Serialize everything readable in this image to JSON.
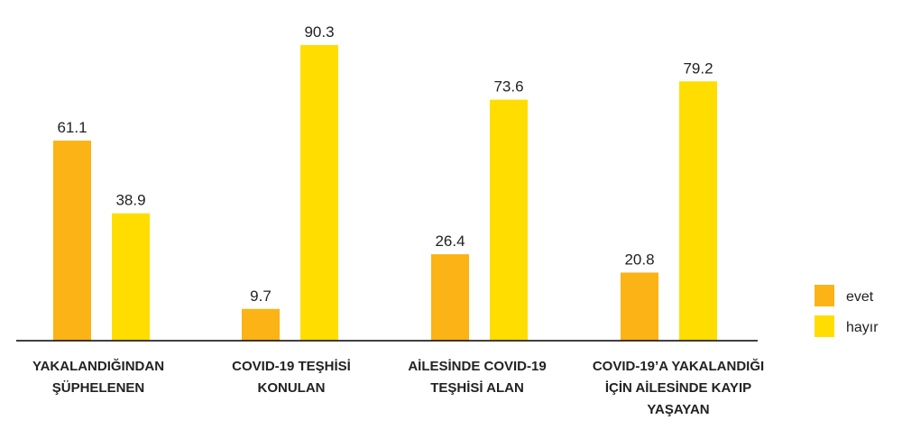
{
  "chart_data": {
    "type": "bar",
    "categories": [
      [
        "YAKALANDIĞINDAN",
        "ŞÜPHELENEN"
      ],
      [
        "COVID-19 TEŞHİSİ",
        "KONULAN"
      ],
      [
        "AİLESİNDE COVID-19",
        "TEŞHİSİ ALAN"
      ],
      [
        "COVID-19’A YAKALANDIĞI",
        "İÇİN AİLESİNDE KAYIP",
        "YAŞAYAN"
      ]
    ],
    "series": [
      {
        "name": "evet",
        "values": [
          61.1,
          9.7,
          26.4,
          20.8
        ],
        "color": "#FBB315"
      },
      {
        "name": "hayır",
        "values": [
          38.9,
          90.3,
          73.6,
          79.2
        ],
        "color": "#FFDD00"
      }
    ],
    "ylim": [
      0,
      100
    ],
    "grid": false,
    "legend_position": "right"
  }
}
